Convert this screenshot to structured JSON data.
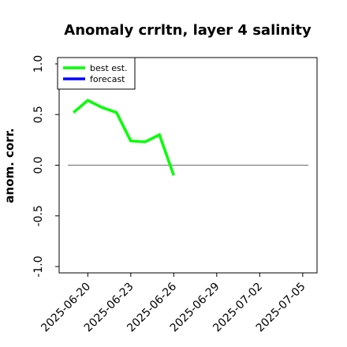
{
  "chart_data": {
    "type": "line",
    "title": "Anomaly crrltn, layer 4 salinity",
    "xlabel": "",
    "ylabel": "anom. corr.",
    "ylim": [
      -1.0,
      1.0
    ],
    "yticks": [
      1.0,
      0.5,
      0.0,
      -0.5,
      -1.0
    ],
    "ytick_labels": [
      "1.0",
      "0.5",
      "0.0",
      "-0.5",
      "-1.0"
    ],
    "xlim": [
      "2025-06-18",
      "2025-07-06"
    ],
    "xticks": [
      "2025-06-20",
      "2025-06-23",
      "2025-06-26",
      "2025-06-29",
      "2025-07-02",
      "2025-07-05"
    ],
    "xtick_colors": [
      "#000000",
      "#000000",
      "#228b22",
      "#000000",
      "#000000",
      "#000000"
    ],
    "legend_position": "upper left",
    "grid": false,
    "reference_line": {
      "y": 0.0,
      "x_start": "2025-06-18",
      "x_end": "2025-07-06",
      "color": "#808080"
    },
    "series": [
      {
        "name": "best est.",
        "color": "#00ff00",
        "x": [
          "2025-06-19",
          "2025-06-20",
          "2025-06-21",
          "2025-06-22",
          "2025-06-23",
          "2025-06-24",
          "2025-06-25",
          "2025-06-26"
        ],
        "y": [
          0.52,
          0.64,
          0.57,
          0.52,
          0.24,
          0.23,
          0.3,
          -0.1
        ]
      },
      {
        "name": "forecast",
        "color": "#0000ff",
        "x": [],
        "y": []
      }
    ]
  }
}
